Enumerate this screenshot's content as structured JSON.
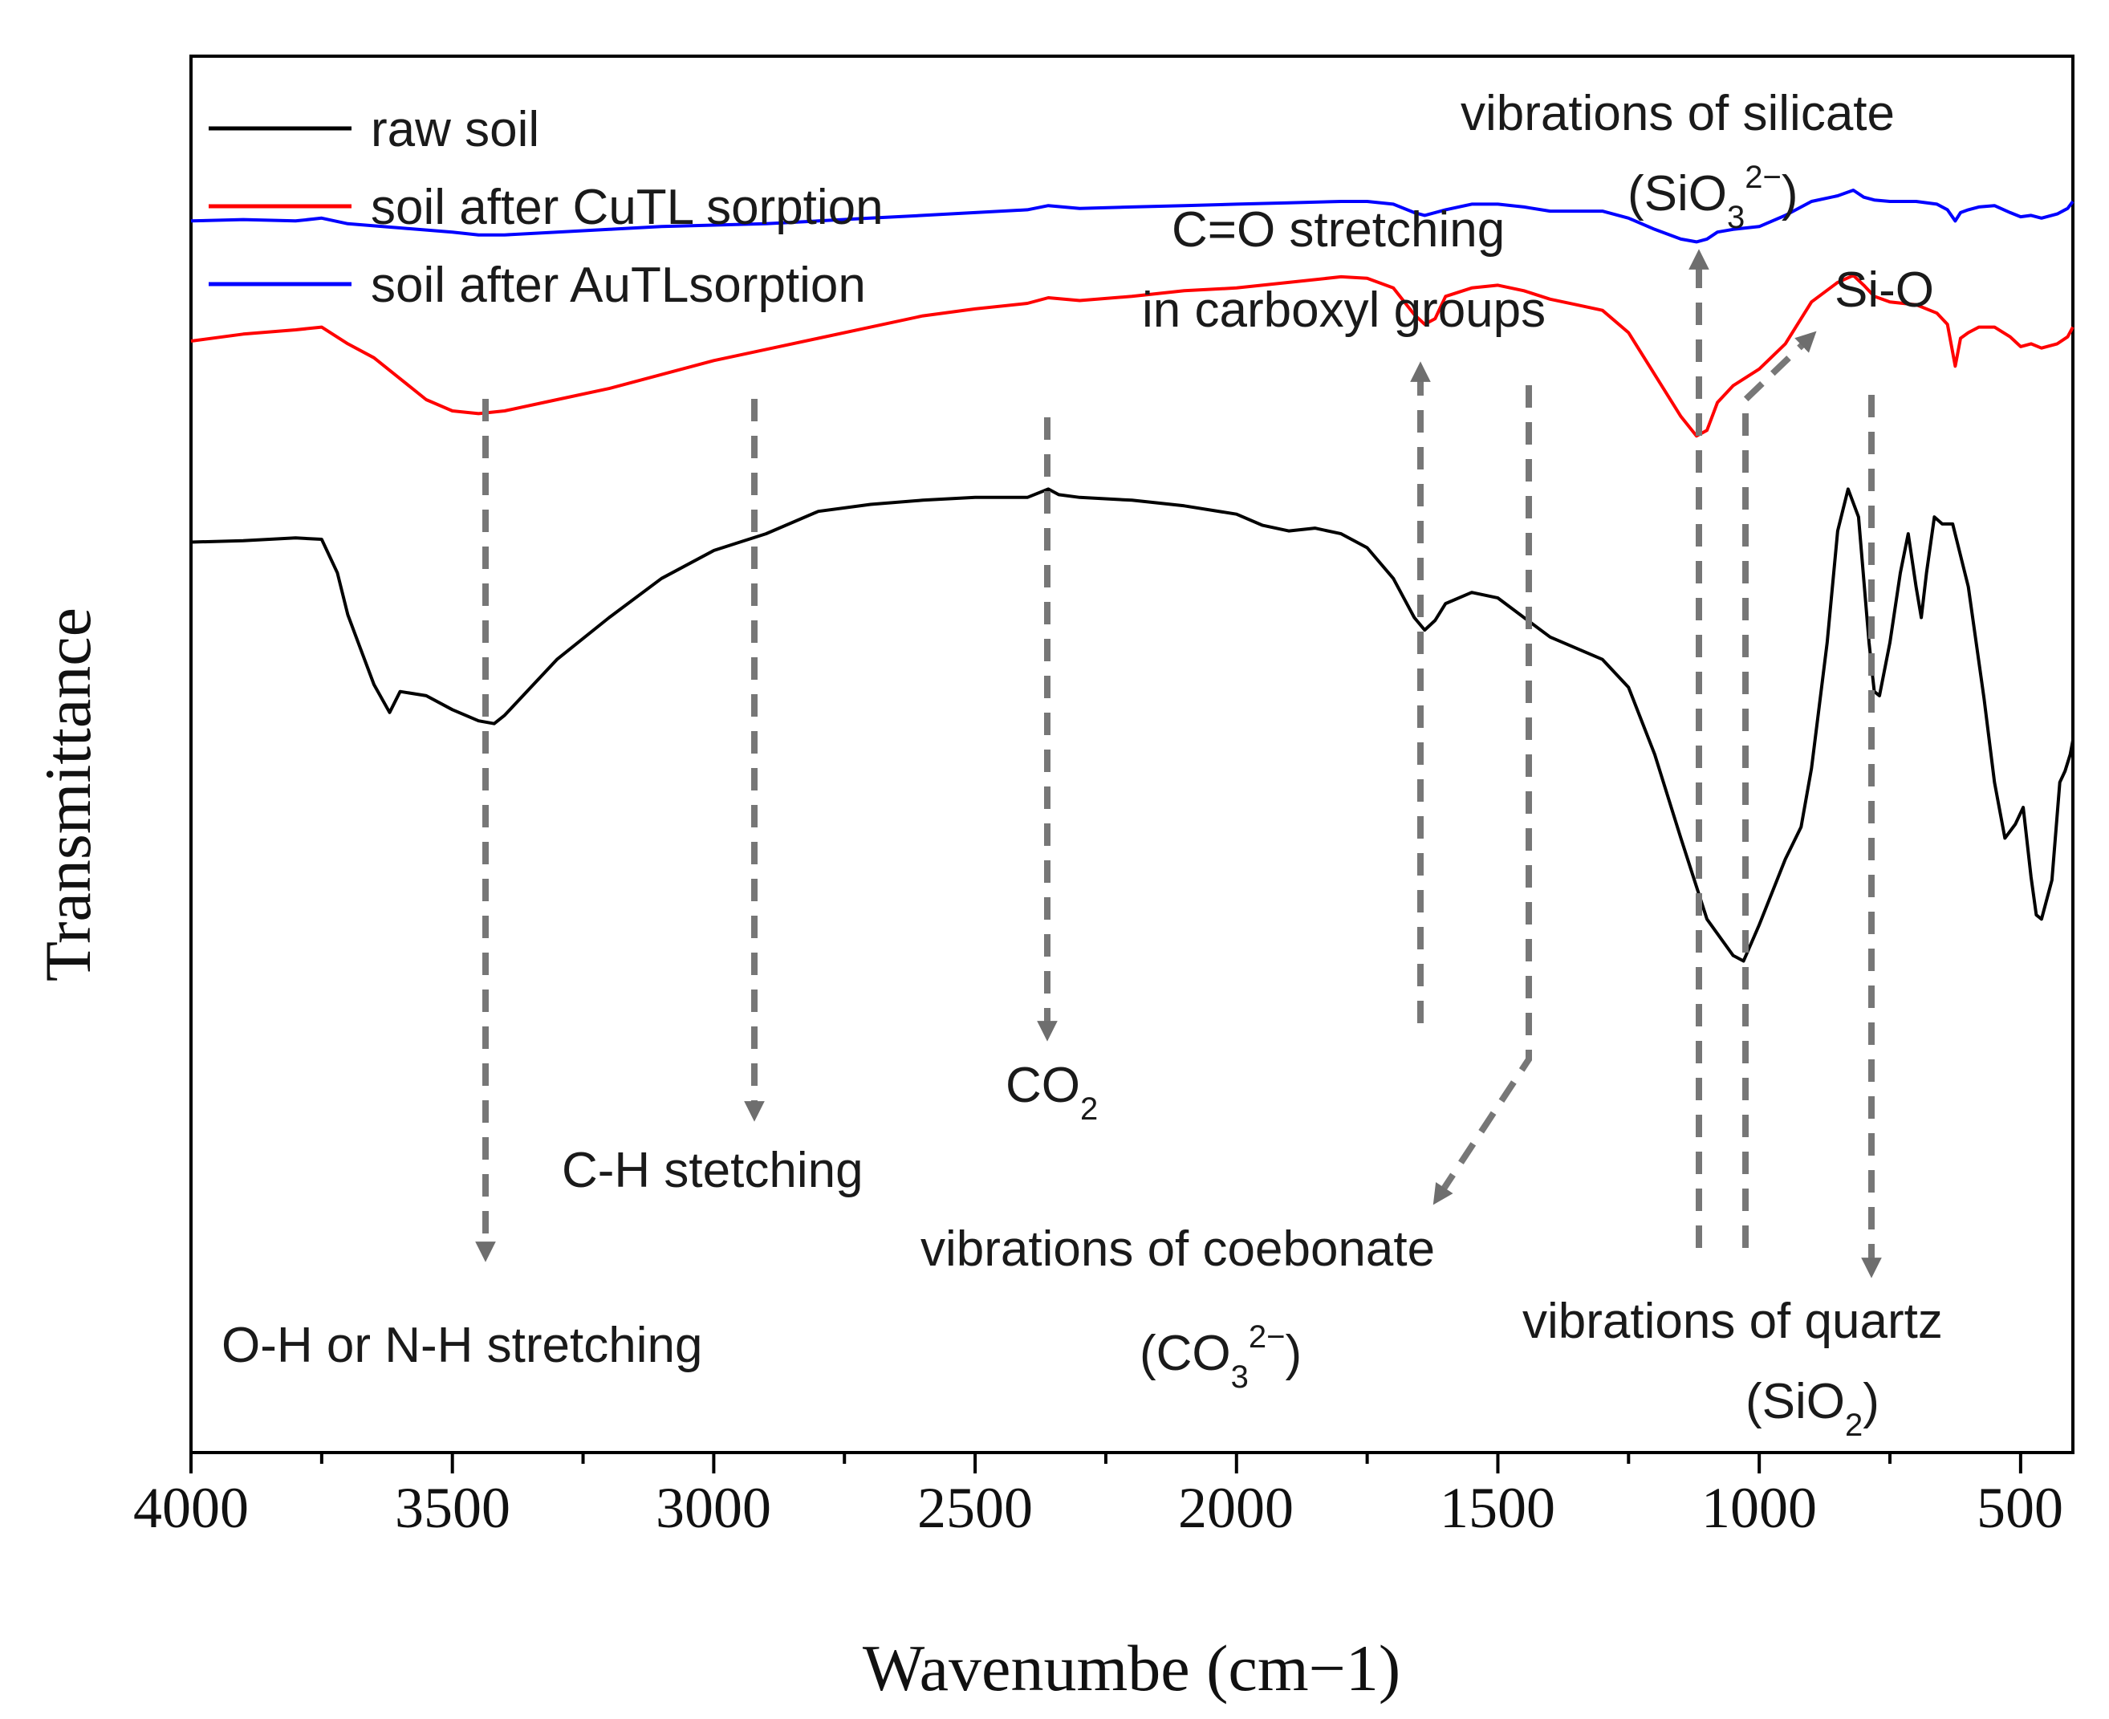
{
  "chart_data": {
    "type": "line",
    "title": "",
    "xlabel": "Wavenumbe (cm−1)",
    "ylabel": "Transmittance",
    "xlim": [
      4000,
      400
    ],
    "x_reversed": true,
    "ylim": [
      0,
      100
    ],
    "y_ticks_shown": false,
    "x_ticks": [
      4000,
      3500,
      3000,
      2500,
      2000,
      1500,
      1000,
      500
    ],
    "x_tick_labels": [
      "4000",
      "3500",
      "3000",
      "2500",
      "2000",
      "1500",
      "1000",
      "500"
    ],
    "grid": false,
    "legend_position": "top-left",
    "series": [
      {
        "name": "raw soil",
        "color": "#000000",
        "points": [
          [
            4000,
            65.2
          ],
          [
            3900,
            65.3
          ],
          [
            3800,
            65.5
          ],
          [
            3750,
            65.4
          ],
          [
            3720,
            63
          ],
          [
            3700,
            60
          ],
          [
            3680,
            58
          ],
          [
            3650,
            55
          ],
          [
            3620,
            53
          ],
          [
            3600,
            54.5
          ],
          [
            3550,
            54.2
          ],
          [
            3500,
            53.2
          ],
          [
            3450,
            52.4
          ],
          [
            3420,
            52.2
          ],
          [
            3400,
            52.8
          ],
          [
            3350,
            54.8
          ],
          [
            3300,
            56.8
          ],
          [
            3200,
            59.8
          ],
          [
            3100,
            62.6
          ],
          [
            3000,
            64.6
          ],
          [
            2950,
            65.2
          ],
          [
            2900,
            65.8
          ],
          [
            2800,
            67.4
          ],
          [
            2700,
            67.9
          ],
          [
            2600,
            68.2
          ],
          [
            2500,
            68.4
          ],
          [
            2400,
            68.4
          ],
          [
            2360,
            69
          ],
          [
            2340,
            68.6
          ],
          [
            2300,
            68.4
          ],
          [
            2200,
            68.2
          ],
          [
            2100,
            67.8
          ],
          [
            2000,
            67.2
          ],
          [
            1950,
            66.4
          ],
          [
            1900,
            66
          ],
          [
            1850,
            66.2
          ],
          [
            1800,
            65.8
          ],
          [
            1750,
            64.8
          ],
          [
            1700,
            62.6
          ],
          [
            1660,
            59.8
          ],
          [
            1640,
            58.9
          ],
          [
            1620,
            59.6
          ],
          [
            1600,
            60.8
          ],
          [
            1550,
            61.6
          ],
          [
            1500,
            61.2
          ],
          [
            1450,
            59.8
          ],
          [
            1400,
            58.4
          ],
          [
            1300,
            56.8
          ],
          [
            1250,
            54.8
          ],
          [
            1200,
            50
          ],
          [
            1150,
            44
          ],
          [
            1100,
            38.2
          ],
          [
            1050,
            35.6
          ],
          [
            1030,
            35.2
          ],
          [
            1000,
            37.8
          ],
          [
            950,
            42.5
          ],
          [
            920,
            44.8
          ],
          [
            900,
            49
          ],
          [
            870,
            58
          ],
          [
            850,
            66
          ],
          [
            830,
            69
          ],
          [
            810,
            67
          ],
          [
            790,
            58
          ],
          [
            780,
            54.5
          ],
          [
            770,
            54.2
          ],
          [
            750,
            58
          ],
          [
            730,
            63
          ],
          [
            715,
            65.8
          ],
          [
            700,
            62
          ],
          [
            690,
            59.8
          ],
          [
            680,
            63
          ],
          [
            665,
            67
          ],
          [
            650,
            66.5
          ],
          [
            630,
            66.5
          ],
          [
            600,
            62
          ],
          [
            570,
            54
          ],
          [
            550,
            48
          ],
          [
            530,
            44
          ],
          [
            510,
            45
          ],
          [
            495,
            46.2
          ],
          [
            480,
            41.2
          ],
          [
            470,
            38.5
          ],
          [
            460,
            38.2
          ],
          [
            440,
            41
          ],
          [
            425,
            48
          ],
          [
            415,
            48.8
          ],
          [
            405,
            50
          ],
          [
            400,
            51
          ]
        ]
      },
      {
        "name": "soil after CuTL sorption",
        "color": "#ff0000",
        "points": [
          [
            4000,
            79.6
          ],
          [
            3900,
            80.1
          ],
          [
            3800,
            80.4
          ],
          [
            3750,
            80.6
          ],
          [
            3700,
            79.4
          ],
          [
            3650,
            78.4
          ],
          [
            3600,
            76.9
          ],
          [
            3550,
            75.4
          ],
          [
            3500,
            74.6
          ],
          [
            3450,
            74.4
          ],
          [
            3400,
            74.6
          ],
          [
            3300,
            75.4
          ],
          [
            3200,
            76.2
          ],
          [
            3100,
            77.2
          ],
          [
            3000,
            78.2
          ],
          [
            2900,
            79
          ],
          [
            2800,
            79.8
          ],
          [
            2700,
            80.6
          ],
          [
            2600,
            81.4
          ],
          [
            2500,
            81.9
          ],
          [
            2400,
            82.3
          ],
          [
            2360,
            82.7
          ],
          [
            2300,
            82.5
          ],
          [
            2200,
            82.8
          ],
          [
            2100,
            83.2
          ],
          [
            2000,
            83.4
          ],
          [
            1900,
            83.8
          ],
          [
            1800,
            84.2
          ],
          [
            1750,
            84.1
          ],
          [
            1700,
            83.4
          ],
          [
            1660,
            81.5
          ],
          [
            1640,
            80.8
          ],
          [
            1620,
            81.2
          ],
          [
            1600,
            82.8
          ],
          [
            1550,
            83.4
          ],
          [
            1500,
            83.6
          ],
          [
            1450,
            83.2
          ],
          [
            1400,
            82.6
          ],
          [
            1350,
            82.2
          ],
          [
            1300,
            81.8
          ],
          [
            1250,
            80.2
          ],
          [
            1200,
            77.2
          ],
          [
            1150,
            74.2
          ],
          [
            1120,
            72.8
          ],
          [
            1100,
            73.2
          ],
          [
            1080,
            75.2
          ],
          [
            1050,
            76.4
          ],
          [
            1000,
            77.6
          ],
          [
            950,
            79.4
          ],
          [
            900,
            82.4
          ],
          [
            850,
            83.8
          ],
          [
            820,
            84.3
          ],
          [
            800,
            83.6
          ],
          [
            780,
            82.8
          ],
          [
            750,
            82.4
          ],
          [
            700,
            82.2
          ],
          [
            660,
            81.6
          ],
          [
            640,
            80.8
          ],
          [
            625,
            77.8
          ],
          [
            615,
            79.8
          ],
          [
            600,
            80.2
          ],
          [
            580,
            80.6
          ],
          [
            550,
            80.6
          ],
          [
            520,
            79.9
          ],
          [
            500,
            79.2
          ],
          [
            480,
            79.4
          ],
          [
            460,
            79.1
          ],
          [
            430,
            79.4
          ],
          [
            410,
            79.9
          ],
          [
            400,
            80.6
          ]
        ]
      },
      {
        "name": "soil after AuTLsorption",
        "color": "#0000ff",
        "points": [
          [
            4000,
            88.2
          ],
          [
            3900,
            88.3
          ],
          [
            3800,
            88.2
          ],
          [
            3750,
            88.4
          ],
          [
            3700,
            88
          ],
          [
            3600,
            87.7
          ],
          [
            3500,
            87.4
          ],
          [
            3450,
            87.2
          ],
          [
            3400,
            87.2
          ],
          [
            3300,
            87.4
          ],
          [
            3200,
            87.6
          ],
          [
            3100,
            87.8
          ],
          [
            3000,
            87.9
          ],
          [
            2900,
            88
          ],
          [
            2800,
            88.2
          ],
          [
            2700,
            88.4
          ],
          [
            2600,
            88.6
          ],
          [
            2500,
            88.8
          ],
          [
            2400,
            89
          ],
          [
            2360,
            89.3
          ],
          [
            2300,
            89.1
          ],
          [
            2200,
            89.2
          ],
          [
            2100,
            89.3
          ],
          [
            2000,
            89.4
          ],
          [
            1900,
            89.5
          ],
          [
            1800,
            89.6
          ],
          [
            1750,
            89.6
          ],
          [
            1700,
            89.4
          ],
          [
            1660,
            88.8
          ],
          [
            1640,
            88.6
          ],
          [
            1600,
            89
          ],
          [
            1550,
            89.4
          ],
          [
            1500,
            89.4
          ],
          [
            1450,
            89.2
          ],
          [
            1400,
            88.9
          ],
          [
            1300,
            88.9
          ],
          [
            1250,
            88.4
          ],
          [
            1200,
            87.6
          ],
          [
            1150,
            86.9
          ],
          [
            1120,
            86.7
          ],
          [
            1100,
            86.9
          ],
          [
            1080,
            87.4
          ],
          [
            1050,
            87.6
          ],
          [
            1000,
            87.8
          ],
          [
            950,
            88.6
          ],
          [
            900,
            89.6
          ],
          [
            850,
            90
          ],
          [
            820,
            90.4
          ],
          [
            800,
            89.9
          ],
          [
            780,
            89.7
          ],
          [
            750,
            89.6
          ],
          [
            700,
            89.6
          ],
          [
            660,
            89.4
          ],
          [
            640,
            89
          ],
          [
            625,
            88.2
          ],
          [
            615,
            88.8
          ],
          [
            600,
            89
          ],
          [
            580,
            89.2
          ],
          [
            550,
            89.3
          ],
          [
            520,
            88.8
          ],
          [
            500,
            88.5
          ],
          [
            480,
            88.6
          ],
          [
            460,
            88.4
          ],
          [
            430,
            88.7
          ],
          [
            410,
            89.1
          ],
          [
            400,
            89.6
          ]
        ]
      }
    ],
    "legend": [
      "raw soil",
      "soil after CuTL sorption",
      "soil after AuTLsorption"
    ],
    "annotations": {
      "oh": "O-H or N-H stretching",
      "ch": "C-H stetching",
      "co2_main": "CO",
      "co2_sub": "2",
      "co_line1": "C=O stretching",
      "co_line2": "in carboxyl groups",
      "carb_line1": "vibrations of coebonate",
      "carb_open": "(CO",
      "carb_sub": "3",
      "carb_sup": "2−",
      "carb_close": ")",
      "sil_line1": "vibrations of silicate",
      "sil_open": "(SiO",
      "sil_sub": "3",
      "sil_sup": "2−",
      "sil_close": ")",
      "sio": "Si-O",
      "quartz_line1": "vibrations of quartz",
      "quartz_open": "(SiO",
      "quartz_sub": "2",
      "quartz_close": ")"
    }
  }
}
